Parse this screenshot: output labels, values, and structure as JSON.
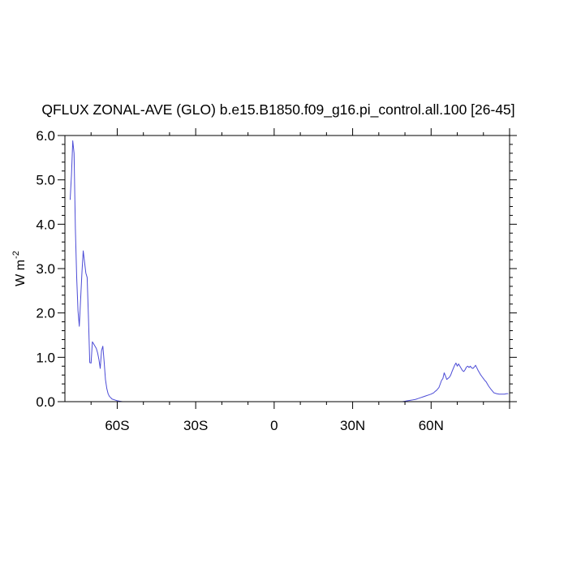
{
  "chart_data": {
    "type": "line",
    "title": "QFLUX ZONAL-AVE (GLO) b.e15.B1850.f09_g16.pi_control.all.100 [26-45]",
    "xlabel": "",
    "ylabel": "W m",
    "ylabel_superscript": "-2",
    "xlim": [
      -80,
      90
    ],
    "ylim": [
      0,
      6
    ],
    "x_ticks": [
      {
        "value": -60,
        "label": "60S"
      },
      {
        "value": -30,
        "label": "30S"
      },
      {
        "value": 0,
        "label": "0"
      },
      {
        "value": 30,
        "label": "30N"
      },
      {
        "value": 60,
        "label": "60N"
      }
    ],
    "y_ticks": [
      {
        "value": 0,
        "label": "0.0"
      },
      {
        "value": 1,
        "label": "1.0"
      },
      {
        "value": 2,
        "label": "2.0"
      },
      {
        "value": 3,
        "label": "3.0"
      },
      {
        "value": 4,
        "label": "4.0"
      },
      {
        "value": 5,
        "label": "5.0"
      },
      {
        "value": 6,
        "label": "6.0"
      }
    ],
    "grid": false,
    "line_color": "#4b4bd6",
    "series": [
      {
        "x": [
          -78.0,
          -77.5,
          -77.0,
          -76.5,
          -76.0,
          -75.5,
          -75.0,
          -74.5,
          -74.0,
          -73.5,
          -73.0,
          -72.5,
          -72.0,
          -71.5,
          -71.0,
          -70.5,
          -70.0,
          -69.5,
          -69.0,
          -68.5,
          -68.0,
          -67.5,
          -67.0,
          -66.5,
          -66.0,
          -65.5,
          -65.0,
          -64.5,
          -64.0,
          -63.5,
          -63.0,
          -62.5,
          -62.0,
          -61.0,
          -60.0,
          -59.0,
          -58.0,
          -57.0,
          -56.0,
          -55.0,
          -50.0,
          -40.0,
          -30.0,
          -20.0,
          -10.0,
          0.0,
          10.0,
          20.0,
          30.0,
          40.0,
          45.0,
          47.0,
          49.0,
          50.0,
          51.0,
          52.0,
          53.0,
          54.0,
          55.0,
          56.0,
          57.0,
          58.0,
          59.0,
          60.0,
          61.0,
          61.5,
          62.0,
          63.0,
          63.5,
          64.0,
          64.5,
          65.0,
          65.5,
          66.0,
          67.0,
          67.5,
          68.0,
          68.5,
          69.0,
          69.5,
          70.0,
          70.5,
          71.0,
          71.5,
          72.0,
          72.5,
          73.0,
          73.5,
          74.0,
          74.5,
          75.0,
          75.5,
          76.0,
          76.5,
          77.0,
          77.5,
          78.0,
          78.5,
          79.0,
          79.5,
          80.0,
          80.5,
          81.0,
          81.5,
          82.0,
          83.0,
          84.0,
          85.0,
          86.0,
          87.0,
          88.0,
          89.0,
          89.5
        ],
        "y": [
          4.55,
          5.1,
          5.88,
          5.6,
          3.9,
          2.8,
          2.05,
          1.7,
          2.3,
          2.9,
          3.4,
          3.15,
          2.9,
          2.8,
          1.9,
          0.88,
          0.87,
          1.35,
          1.3,
          1.25,
          1.2,
          1.1,
          0.95,
          0.75,
          1.15,
          1.25,
          0.9,
          0.5,
          0.3,
          0.18,
          0.12,
          0.09,
          0.06,
          0.04,
          0.02,
          0.01,
          0.0,
          0.0,
          0.0,
          0.0,
          0.0,
          0.0,
          0.0,
          0.0,
          0.0,
          0.0,
          0.0,
          0.0,
          0.0,
          0.0,
          0.0,
          0.0,
          0.0,
          0.01,
          0.02,
          0.03,
          0.04,
          0.05,
          0.07,
          0.09,
          0.11,
          0.13,
          0.15,
          0.17,
          0.2,
          0.23,
          0.25,
          0.32,
          0.4,
          0.48,
          0.52,
          0.65,
          0.58,
          0.5,
          0.55,
          0.6,
          0.68,
          0.75,
          0.82,
          0.87,
          0.8,
          0.85,
          0.8,
          0.75,
          0.7,
          0.68,
          0.72,
          0.78,
          0.8,
          0.77,
          0.8,
          0.76,
          0.75,
          0.78,
          0.82,
          0.76,
          0.7,
          0.65,
          0.6,
          0.56,
          0.52,
          0.48,
          0.45,
          0.4,
          0.35,
          0.27,
          0.2,
          0.18,
          0.17,
          0.17,
          0.17,
          0.18,
          0.18
        ]
      }
    ]
  }
}
